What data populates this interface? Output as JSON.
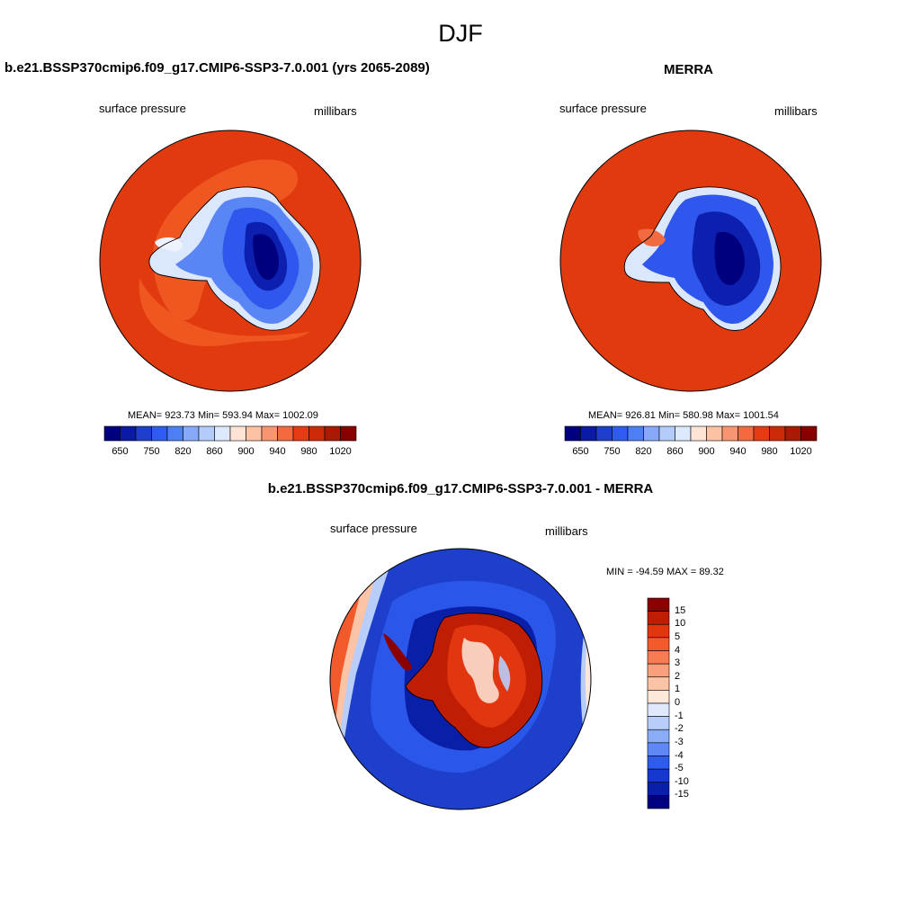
{
  "main_title": "DJF",
  "panels": {
    "model": {
      "title": "b.e21.BSSP370cmip6.f09_g17.CMIP6-SSP3-7.0.001 (yrs 2065-2089)",
      "variable": "surface pressure",
      "units": "millibars",
      "stats": "MEAN= 923.73  Min= 593.94  Max= 1002.09"
    },
    "obs": {
      "title": "MERRA",
      "variable": "surface pressure",
      "units": "millibars",
      "stats": "MEAN= 926.81  Min= 580.98  Max= 1001.54"
    },
    "diff": {
      "title": "b.e21.BSSP370cmip6.f09_g17.CMIP6-SSP3-7.0.001 - MERRA",
      "variable": "surface pressure",
      "units": "millibars",
      "stats": "MIN = -94.59 MAX =  89.32"
    }
  },
  "abs_colorbar": {
    "colors": [
      "#00007f",
      "#0a1aa3",
      "#1d3fcc",
      "#2e5cf0",
      "#4d7ff7",
      "#86aaf9",
      "#b4ccfa",
      "#dde9fc",
      "#fde4d4",
      "#fbc2a3",
      "#f79570",
      "#f26a40",
      "#e83a13",
      "#cc2a08",
      "#a81a04",
      "#870000"
    ],
    "labels": [
      "650",
      "750",
      "820",
      "860",
      "900",
      "940",
      "980",
      "1020"
    ]
  },
  "diff_colorbar": {
    "colors": [
      "#8b0000",
      "#c01d05",
      "#e23610",
      "#f25a2c",
      "#f67d52",
      "#f8a07c",
      "#fbc4a7",
      "#fde8da",
      "#dfe9fb",
      "#b8cdf9",
      "#8aacf7",
      "#5f88f4",
      "#2e5cf0",
      "#1638cf",
      "#0a1fa8",
      "#000080"
    ],
    "labels": [
      "15",
      "10",
      "5",
      "4",
      "3",
      "2",
      "1",
      "0",
      "-1",
      "-2",
      "-3",
      "-4",
      "-5",
      "-10",
      "-15"
    ]
  }
}
